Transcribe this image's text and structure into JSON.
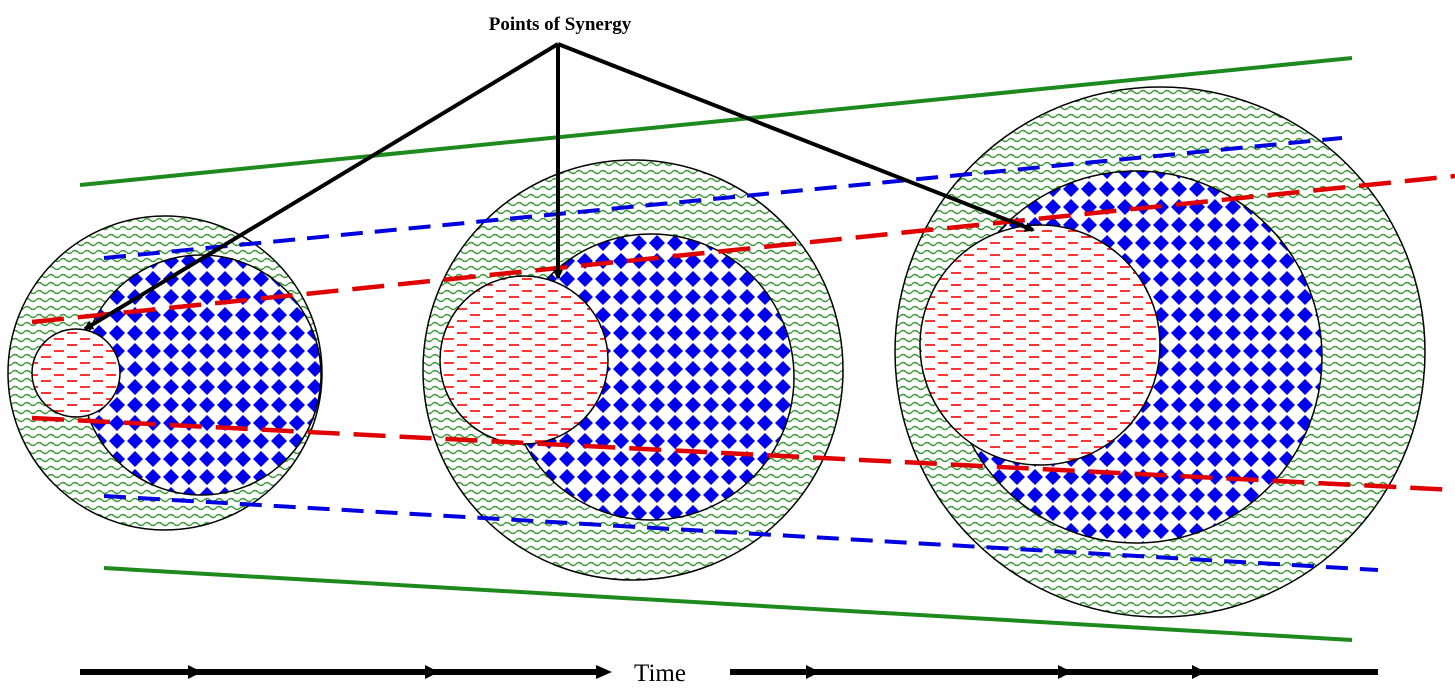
{
  "annotation": {
    "text": "Points of Synergy"
  },
  "axis": {
    "label": "Time"
  },
  "colors": {
    "outer_band": "#2e8b2e",
    "outer_fill": "#3a9a3a",
    "middle_dashed": "#0000e0",
    "middle_fill": "#0000ee",
    "inner_dashed": "#e00000",
    "inner_fill": "#ff0000",
    "arrows": "#000000"
  },
  "stages": [
    {
      "stage": 1,
      "outer_circle": "green-wave-pattern",
      "middle_circle": "blue-diamond-pattern",
      "inner_circle": "red-dash-pattern"
    },
    {
      "stage": 2,
      "outer_circle": "green-wave-pattern",
      "middle_circle": "blue-diamond-pattern",
      "inner_circle": "red-dash-pattern"
    },
    {
      "stage": 3,
      "outer_circle": "green-wave-pattern",
      "middle_circle": "blue-diamond-pattern",
      "inner_circle": "red-dash-pattern"
    }
  ]
}
